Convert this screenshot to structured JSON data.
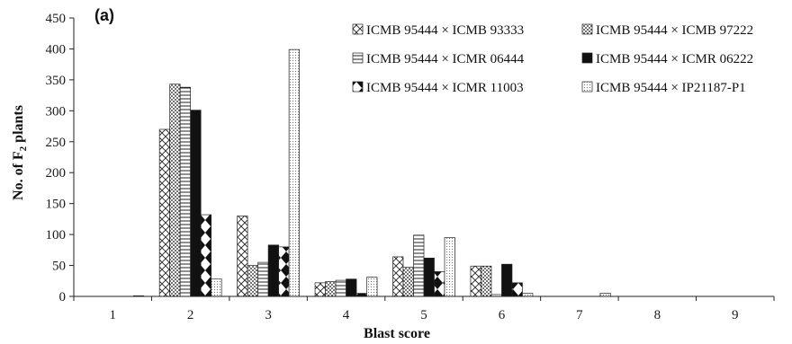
{
  "chart_data": {
    "type": "bar",
    "panel_label": "(a)",
    "xlabel": "Blast score",
    "ylabel_main": "No. of F",
    "ylabel_sub": "2",
    "ylabel_tail": " plants",
    "ylim": [
      0,
      450
    ],
    "yticks": [
      "0",
      "50",
      "100",
      "150",
      "200",
      "250",
      "300",
      "350",
      "400",
      "450"
    ],
    "categories": [
      "1",
      "2",
      "3",
      "4",
      "5",
      "6",
      "7",
      "8",
      "9"
    ],
    "legend_position": "top-right",
    "grid": false,
    "series": [
      {
        "name": "ICMB 95444 × ICMB 93333",
        "pattern": "crosshatch",
        "values": [
          0,
          270,
          130,
          22,
          64,
          49,
          0,
          0,
          0
        ]
      },
      {
        "name": "ICMB 95444 × ICMB 97222",
        "pattern": "dots",
        "values": [
          0,
          343,
          50,
          24,
          47,
          49,
          0,
          0,
          0
        ]
      },
      {
        "name": "ICMB 95444 × ICMR 06444",
        "pattern": "horizontal",
        "values": [
          0,
          338,
          55,
          26,
          99,
          3,
          0,
          0,
          0
        ]
      },
      {
        "name": "ICMB 95444 × ICMR 06222",
        "pattern": "solid",
        "values": [
          0,
          301,
          83,
          28,
          62,
          52,
          0,
          0,
          0
        ]
      },
      {
        "name": "ICMB 95444 × ICMR 11003",
        "pattern": "diamonds",
        "values": [
          0,
          132,
          80,
          5,
          40,
          22,
          0,
          0,
          0
        ]
      },
      {
        "name": "ICMB 95444 × IP21187-P1",
        "pattern": "finedots",
        "values": [
          1,
          28,
          399,
          31,
          95,
          5,
          5,
          0,
          0
        ]
      }
    ]
  }
}
